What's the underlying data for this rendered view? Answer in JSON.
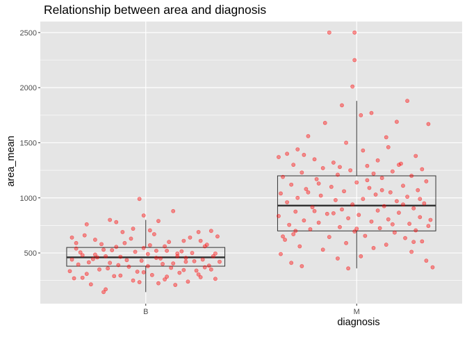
{
  "chart_data": {
    "type": "boxplot+jitter",
    "title": "Relationship between area and diagnosis",
    "xlabel": "diagnosis",
    "ylabel": "area_mean",
    "categories": [
      "B",
      "M"
    ],
    "ylim": [
      40,
      2600
    ],
    "y_ticks": [
      500,
      1000,
      1500,
      2000,
      2500
    ],
    "y_tick_labels": [
      "500",
      "1000",
      "1500",
      "2000",
      "2500"
    ],
    "grid": true,
    "background": "#E5E5E5",
    "grid_color": "#FFFFFF",
    "point_color": "#FF0000",
    "point_alpha": 0.4,
    "box_color": "#333333",
    "boxes": [
      {
        "category": "B",
        "whisker_low": 145,
        "q1": 380,
        "median": 460,
        "q3": 550,
        "whisker_high": 800
      },
      {
        "category": "M",
        "whisker_low": 360,
        "q1": 700,
        "median": 930,
        "q3": 1200,
        "whisker_high": 1880
      }
    ],
    "points": [
      {
        "c": "B",
        "x": -0.03,
        "y": 990
      },
      {
        "c": "B",
        "x": 0.13,
        "y": 880
      },
      {
        "c": "B",
        "x": -0.01,
        "y": 840
      },
      {
        "c": "B",
        "x": -0.17,
        "y": 800
      },
      {
        "c": "B",
        "x": 0.06,
        "y": 790
      },
      {
        "c": "B",
        "x": -0.14,
        "y": 780
      },
      {
        "c": "B",
        "x": -0.28,
        "y": 760
      },
      {
        "c": "B",
        "x": 0.31,
        "y": 700
      },
      {
        "c": "B",
        "x": -0.35,
        "y": 640
      },
      {
        "c": "B",
        "x": 0.34,
        "y": 650
      },
      {
        "c": "B",
        "x": 0.25,
        "y": 690
      },
      {
        "c": "B",
        "x": -0.24,
        "y": 620
      },
      {
        "c": "B",
        "x": 0.18,
        "y": 610
      },
      {
        "c": "B",
        "x": -0.1,
        "y": 590
      },
      {
        "c": "B",
        "x": 0.02,
        "y": 570
      },
      {
        "c": "B",
        "x": 0.28,
        "y": 560
      },
      {
        "c": "B",
        "x": -0.33,
        "y": 540
      },
      {
        "c": "B",
        "x": -0.2,
        "y": 530
      },
      {
        "c": "B",
        "x": 0.1,
        "y": 520
      },
      {
        "c": "B",
        "x": -0.05,
        "y": 510
      },
      {
        "c": "B",
        "x": 0.22,
        "y": 500
      },
      {
        "c": "B",
        "x": 0.33,
        "y": 495
      },
      {
        "c": "B",
        "x": -0.3,
        "y": 480
      },
      {
        "c": "B",
        "x": 0.15,
        "y": 470
      },
      {
        "c": "B",
        "x": -0.12,
        "y": 465
      },
      {
        "c": "B",
        "x": 0.05,
        "y": 455
      },
      {
        "c": "B",
        "x": -0.25,
        "y": 445
      },
      {
        "c": "B",
        "x": 0.27,
        "y": 440
      },
      {
        "c": "B",
        "x": -0.02,
        "y": 430
      },
      {
        "c": "B",
        "x": 0.19,
        "y": 420
      },
      {
        "c": "B",
        "x": -0.17,
        "y": 410
      },
      {
        "c": "B",
        "x": 0.08,
        "y": 400
      },
      {
        "c": "B",
        "x": -0.32,
        "y": 395
      },
      {
        "c": "B",
        "x": 0.3,
        "y": 385
      },
      {
        "c": "B",
        "x": -0.08,
        "y": 375
      },
      {
        "c": "B",
        "x": 0.12,
        "y": 365
      },
      {
        "c": "B",
        "x": -0.22,
        "y": 350
      },
      {
        "c": "B",
        "x": 0.24,
        "y": 340
      },
      {
        "c": "B",
        "x": -0.04,
        "y": 330
      },
      {
        "c": "B",
        "x": 0.16,
        "y": 320
      },
      {
        "c": "B",
        "x": -0.28,
        "y": 310
      },
      {
        "c": "B",
        "x": 0.03,
        "y": 300
      },
      {
        "c": "B",
        "x": -0.15,
        "y": 290
      },
      {
        "c": "B",
        "x": 0.26,
        "y": 280
      },
      {
        "c": "B",
        "x": -0.34,
        "y": 270
      },
      {
        "c": "B",
        "x": 0.09,
        "y": 260
      },
      {
        "c": "B",
        "x": -0.06,
        "y": 250
      },
      {
        "c": "B",
        "x": 0.2,
        "y": 240
      },
      {
        "c": "B",
        "x": 0.06,
        "y": 225
      },
      {
        "c": "B",
        "x": -0.26,
        "y": 215
      },
      {
        "c": "B",
        "x": 0.14,
        "y": 210
      },
      {
        "c": "B",
        "x": -0.19,
        "y": 170
      },
      {
        "c": "B",
        "x": -0.2,
        "y": 145
      },
      {
        "c": "B",
        "x": -0.11,
        "y": 690
      },
      {
        "c": "B",
        "x": 0.04,
        "y": 670
      },
      {
        "c": "B",
        "x": -0.29,
        "y": 660
      },
      {
        "c": "B",
        "x": 0.21,
        "y": 640
      },
      {
        "c": "B",
        "x": -0.07,
        "y": 630
      },
      {
        "c": "B",
        "x": 0.11,
        "y": 600
      },
      {
        "c": "B",
        "x": -0.21,
        "y": 580
      },
      {
        "c": "B",
        "x": 0.29,
        "y": 575
      },
      {
        "c": "B",
        "x": -0.01,
        "y": 545
      },
      {
        "c": "B",
        "x": -0.16,
        "y": 525
      },
      {
        "c": "B",
        "x": 0.17,
        "y": 515
      },
      {
        "c": "B",
        "x": -0.31,
        "y": 505
      },
      {
        "c": "B",
        "x": 0.01,
        "y": 490
      },
      {
        "c": "B",
        "x": 0.32,
        "y": 470
      },
      {
        "c": "B",
        "x": -0.23,
        "y": 460
      },
      {
        "c": "B",
        "x": 0.07,
        "y": 450
      },
      {
        "c": "B",
        "x": -0.09,
        "y": 435
      },
      {
        "c": "B",
        "x": 0.23,
        "y": 425
      },
      {
        "c": "B",
        "x": -0.27,
        "y": 415
      },
      {
        "c": "B",
        "x": 0.13,
        "y": 405
      },
      {
        "c": "B",
        "x": -0.13,
        "y": 390
      },
      {
        "c": "B",
        "x": 0.01,
        "y": 380
      },
      {
        "c": "B",
        "x": 0.28,
        "y": 370
      },
      {
        "c": "B",
        "x": -0.18,
        "y": 360
      },
      {
        "c": "B",
        "x": 0.18,
        "y": 345
      },
      {
        "c": "B",
        "x": -0.36,
        "y": 335
      },
      {
        "c": "B",
        "x": -0.01,
        "y": 325
      },
      {
        "c": "B",
        "x": 0.25,
        "y": 305
      },
      {
        "c": "B",
        "x": -0.12,
        "y": 295
      },
      {
        "c": "B",
        "x": 0.1,
        "y": 285
      },
      {
        "c": "B",
        "x": -0.3,
        "y": 275
      },
      {
        "c": "B",
        "x": 0.33,
        "y": 265
      },
      {
        "c": "B",
        "x": -0.03,
        "y": 235
      },
      {
        "c": "B",
        "x": 0.15,
        "y": 495
      },
      {
        "c": "B",
        "x": -0.24,
        "y": 485
      },
      {
        "c": "B",
        "x": 0.05,
        "y": 520
      },
      {
        "c": "B",
        "x": -0.14,
        "y": 555
      },
      {
        "c": "B",
        "x": 0.26,
        "y": 610
      },
      {
        "c": "B",
        "x": -0.33,
        "y": 590
      },
      {
        "c": "B",
        "x": 0.02,
        "y": 705
      },
      {
        "c": "B",
        "x": -0.06,
        "y": 720
      },
      {
        "c": "B",
        "x": 0.09,
        "y": 560
      },
      {
        "c": "B",
        "x": 0.35,
        "y": 420
      },
      {
        "c": "B",
        "x": -0.35,
        "y": 440
      },
      {
        "c": "B",
        "x": 0.19,
        "y": 455
      },
      {
        "c": "B",
        "x": -0.19,
        "y": 470
      },
      {
        "c": "B",
        "x": 0.31,
        "y": 350
      },
      {
        "c": "M",
        "x": -0.13,
        "y": 2500
      },
      {
        "c": "M",
        "x": -0.01,
        "y": 2500
      },
      {
        "c": "M",
        "x": -0.01,
        "y": 2250
      },
      {
        "c": "M",
        "x": -0.02,
        "y": 2010
      },
      {
        "c": "M",
        "x": 0.24,
        "y": 1880
      },
      {
        "c": "M",
        "x": -0.07,
        "y": 1840
      },
      {
        "c": "M",
        "x": 0.07,
        "y": 1770
      },
      {
        "c": "M",
        "x": 0.02,
        "y": 1750
      },
      {
        "c": "M",
        "x": 0.19,
        "y": 1690
      },
      {
        "c": "M",
        "x": 0.34,
        "y": 1670
      },
      {
        "c": "M",
        "x": -0.15,
        "y": 1680
      },
      {
        "c": "M",
        "x": -0.23,
        "y": 1560
      },
      {
        "c": "M",
        "x": 0.14,
        "y": 1550
      },
      {
        "c": "M",
        "x": -0.05,
        "y": 1500
      },
      {
        "c": "M",
        "x": 0.15,
        "y": 1460
      },
      {
        "c": "M",
        "x": -0.28,
        "y": 1440
      },
      {
        "c": "M",
        "x": 0.03,
        "y": 1430
      },
      {
        "c": "M",
        "x": -0.33,
        "y": 1400
      },
      {
        "c": "M",
        "x": -0.25,
        "y": 1390
      },
      {
        "c": "M",
        "x": 0.28,
        "y": 1380
      },
      {
        "c": "M",
        "x": -0.37,
        "y": 1370
      },
      {
        "c": "M",
        "x": -0.2,
        "y": 1350
      },
      {
        "c": "M",
        "x": 0.1,
        "y": 1340
      },
      {
        "c": "M",
        "x": -0.11,
        "y": 1320
      },
      {
        "c": "M",
        "x": 0.21,
        "y": 1310
      },
      {
        "c": "M",
        "x": -0.3,
        "y": 1300
      },
      {
        "c": "M",
        "x": 0.05,
        "y": 1290
      },
      {
        "c": "M",
        "x": -0.16,
        "y": 1270
      },
      {
        "c": "M",
        "x": 0.31,
        "y": 1260
      },
      {
        "c": "M",
        "x": -0.03,
        "y": 1250
      },
      {
        "c": "M",
        "x": 0.17,
        "y": 1240
      },
      {
        "c": "M",
        "x": -0.26,
        "y": 1230
      },
      {
        "c": "M",
        "x": 0.08,
        "y": 1220
      },
      {
        "c": "M",
        "x": -0.09,
        "y": 1210
      },
      {
        "c": "M",
        "x": 0.26,
        "y": 1200
      },
      {
        "c": "M",
        "x": -0.35,
        "y": 1190
      },
      {
        "c": "M",
        "x": 0.12,
        "y": 1180
      },
      {
        "c": "M",
        "x": -0.19,
        "y": 1170
      },
      {
        "c": "M",
        "x": 0.33,
        "y": 1150
      },
      {
        "c": "M",
        "x": 0.0,
        "y": 1140
      },
      {
        "c": "M",
        "x": -0.31,
        "y": 1120
      },
      {
        "c": "M",
        "x": 0.22,
        "y": 1110
      },
      {
        "c": "M",
        "x": -0.12,
        "y": 1100
      },
      {
        "c": "M",
        "x": 0.06,
        "y": 1090
      },
      {
        "c": "M",
        "x": -0.24,
        "y": 1080
      },
      {
        "c": "M",
        "x": 0.29,
        "y": 1070
      },
      {
        "c": "M",
        "x": -0.06,
        "y": 1060
      },
      {
        "c": "M",
        "x": 0.16,
        "y": 1050
      },
      {
        "c": "M",
        "x": -0.36,
        "y": 1040
      },
      {
        "c": "M",
        "x": 0.09,
        "y": 1030
      },
      {
        "c": "M",
        "x": -0.17,
        "y": 1020
      },
      {
        "c": "M",
        "x": 0.24,
        "y": 1010
      },
      {
        "c": "M",
        "x": -0.28,
        "y": 1000
      },
      {
        "c": "M",
        "x": 0.03,
        "y": 990
      },
      {
        "c": "M",
        "x": -0.1,
        "y": 980
      },
      {
        "c": "M",
        "x": 0.19,
        "y": 970
      },
      {
        "c": "M",
        "x": -0.33,
        "y": 960
      },
      {
        "c": "M",
        "x": 0.32,
        "y": 950
      },
      {
        "c": "M",
        "x": -0.02,
        "y": 940
      },
      {
        "c": "M",
        "x": 0.13,
        "y": 925
      },
      {
        "c": "M",
        "x": -0.21,
        "y": 915
      },
      {
        "c": "M",
        "x": 0.27,
        "y": 905
      },
      {
        "c": "M",
        "x": -0.07,
        "y": 895
      },
      {
        "c": "M",
        "x": 0.1,
        "y": 885
      },
      {
        "c": "M",
        "x": -0.29,
        "y": 875
      },
      {
        "c": "M",
        "x": 0.2,
        "y": 865
      },
      {
        "c": "M",
        "x": -0.14,
        "y": 855
      },
      {
        "c": "M",
        "x": 0.01,
        "y": 845
      },
      {
        "c": "M",
        "x": -0.37,
        "y": 835
      },
      {
        "c": "M",
        "x": 0.3,
        "y": 825
      },
      {
        "c": "M",
        "x": -0.04,
        "y": 815
      },
      {
        "c": "M",
        "x": 0.15,
        "y": 805
      },
      {
        "c": "M",
        "x": -0.25,
        "y": 795
      },
      {
        "c": "M",
        "x": 0.07,
        "y": 785
      },
      {
        "c": "M",
        "x": -0.18,
        "y": 775
      },
      {
        "c": "M",
        "x": 0.25,
        "y": 765
      },
      {
        "c": "M",
        "x": -0.32,
        "y": 755
      },
      {
        "c": "M",
        "x": 0.34,
        "y": 745
      },
      {
        "c": "M",
        "x": -0.08,
        "y": 735
      },
      {
        "c": "M",
        "x": 0.11,
        "y": 725
      },
      {
        "c": "M",
        "x": -0.22,
        "y": 715
      },
      {
        "c": "M",
        "x": 0.28,
        "y": 705
      },
      {
        "c": "M",
        "x": -0.01,
        "y": 695
      },
      {
        "c": "M",
        "x": 0.18,
        "y": 685
      },
      {
        "c": "M",
        "x": -0.3,
        "y": 670
      },
      {
        "c": "M",
        "x": 0.04,
        "y": 655
      },
      {
        "c": "M",
        "x": -0.13,
        "y": 645
      },
      {
        "c": "M",
        "x": 0.23,
        "y": 635
      },
      {
        "c": "M",
        "x": -0.34,
        "y": 620
      },
      {
        "c": "M",
        "x": 0.31,
        "y": 605
      },
      {
        "c": "M",
        "x": -0.05,
        "y": 590
      },
      {
        "c": "M",
        "x": 0.14,
        "y": 575
      },
      {
        "c": "M",
        "x": -0.27,
        "y": 560
      },
      {
        "c": "M",
        "x": 0.08,
        "y": 545
      },
      {
        "c": "M",
        "x": -0.16,
        "y": 530
      },
      {
        "c": "M",
        "x": 0.26,
        "y": 510
      },
      {
        "c": "M",
        "x": -0.36,
        "y": 490
      },
      {
        "c": "M",
        "x": 0.02,
        "y": 470
      },
      {
        "c": "M",
        "x": -0.09,
        "y": 450
      },
      {
        "c": "M",
        "x": 0.33,
        "y": 430
      },
      {
        "c": "M",
        "x": -0.31,
        "y": 410
      },
      {
        "c": "M",
        "x": -0.26,
        "y": 380
      },
      {
        "c": "M",
        "x": 0.36,
        "y": 370
      },
      {
        "c": "M",
        "x": -0.04,
        "y": 360
      },
      {
        "c": "M",
        "x": 0.2,
        "y": 1300
      },
      {
        "c": "M",
        "x": -0.18,
        "y": 1130
      },
      {
        "c": "M",
        "x": 0.05,
        "y": 1160
      },
      {
        "c": "M",
        "x": -0.23,
        "y": 1050
      },
      {
        "c": "M",
        "x": 0.3,
        "y": 990
      },
      {
        "c": "M",
        "x": -0.11,
        "y": 860
      },
      {
        "c": "M",
        "x": 0.17,
        "y": 760
      },
      {
        "c": "M",
        "x": -0.35,
        "y": 650
      },
      {
        "c": "M",
        "x": 0.27,
        "y": 600
      },
      {
        "c": "M",
        "x": 0.0,
        "y": 720
      },
      {
        "c": "M",
        "x": -0.2,
        "y": 880
      },
      {
        "c": "M",
        "x": 0.12,
        "y": 1070
      },
      {
        "c": "M",
        "x": 0.35,
        "y": 800
      },
      {
        "c": "M",
        "x": -0.08,
        "y": 1280
      },
      {
        "c": "M",
        "x": 0.22,
        "y": 940
      },
      {
        "c": "M",
        "x": -0.29,
        "y": 700
      }
    ]
  }
}
